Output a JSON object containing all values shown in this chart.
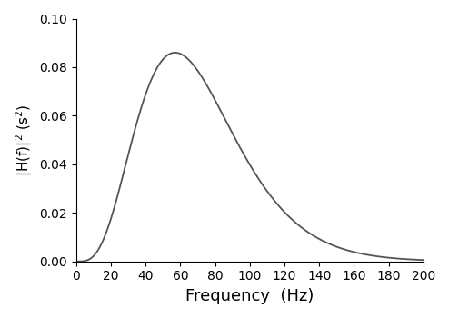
{
  "xlabel": "Frequency  (Hz)",
  "ylabel": "|H(f)|$^2$ (s$^2$)",
  "xlim": [
    0,
    200
  ],
  "ylim": [
    0,
    0.1
  ],
  "xticks": [
    0,
    20,
    40,
    60,
    80,
    100,
    120,
    140,
    160,
    180,
    200
  ],
  "yticks": [
    0.0,
    0.02,
    0.04,
    0.06,
    0.08,
    0.1
  ],
  "line_color": "#555555",
  "line_width": 1.3,
  "peak_freq": 57.0,
  "power": 4,
  "peak_value": 0.086,
  "background_color": "#ffffff",
  "xlabel_fontsize": 13,
  "ylabel_fontsize": 11,
  "tick_fontsize": 10
}
